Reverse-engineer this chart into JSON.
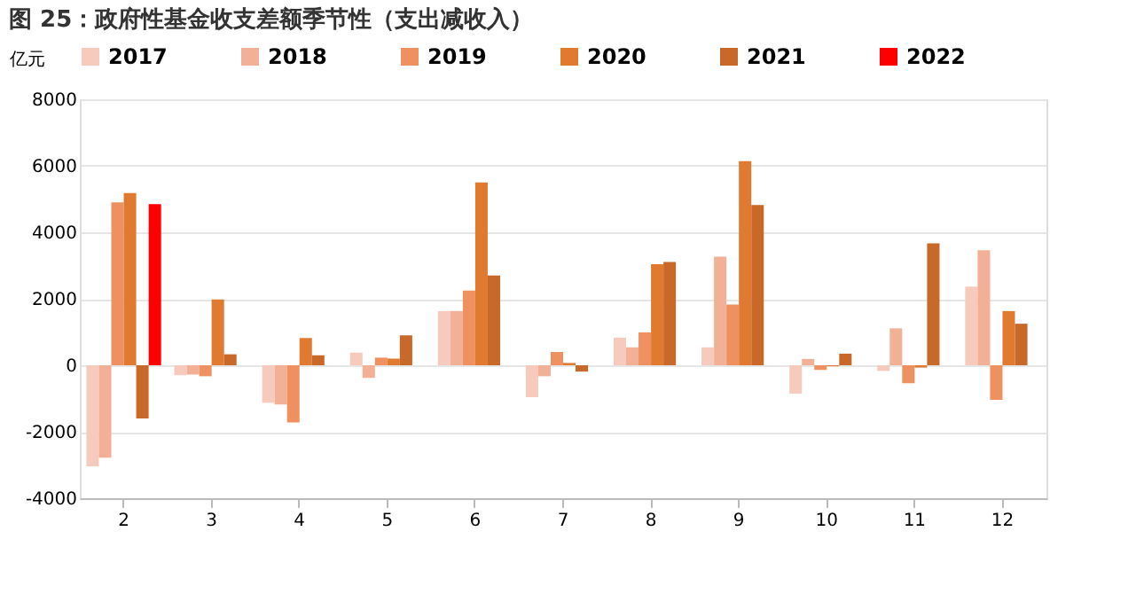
{
  "chart_data": {
    "type": "bar",
    "title": "图 25：政府性基金收支差额季节性（支出减收入）",
    "ylabel": "亿元",
    "categories": [
      "2",
      "3",
      "4",
      "5",
      "6",
      "7",
      "8",
      "9",
      "10",
      "11",
      "12"
    ],
    "series": [
      {
        "name": "2017",
        "color": "#f6cbbd",
        "values": [
          -3040,
          -300,
          -1130,
          380,
          1630,
          -960,
          830,
          540,
          -850,
          -170,
          2370
        ]
      },
      {
        "name": "2018",
        "color": "#f2b096",
        "values": [
          -2780,
          -280,
          -1180,
          -380,
          1630,
          -330,
          540,
          3270,
          190,
          1110,
          3460
        ]
      },
      {
        "name": "2019",
        "color": "#ee9060",
        "values": [
          4900,
          -330,
          -1720,
          230,
          2250,
          400,
          990,
          1830,
          -140,
          -540,
          -1040
        ]
      },
      {
        "name": "2020",
        "color": "#e07a30",
        "values": [
          5180,
          1980,
          820,
          200,
          5500,
          70,
          3040,
          6140,
          -30,
          -70,
          1630
        ]
      },
      {
        "name": "2021",
        "color": "#c8692a",
        "values": [
          -1600,
          330,
          300,
          900,
          2700,
          -190,
          3110,
          4820,
          350,
          3670,
          1250
        ]
      },
      {
        "name": "2022",
        "color": "#ff0000",
        "values": [
          4850,
          null,
          null,
          null,
          null,
          null,
          null,
          null,
          null,
          null,
          null
        ]
      }
    ],
    "ylim": [
      -4000,
      8000
    ],
    "yticks": [
      -4000,
      -2000,
      0,
      2000,
      4000,
      6000,
      8000
    ],
    "grid": "y",
    "legend": "top"
  }
}
